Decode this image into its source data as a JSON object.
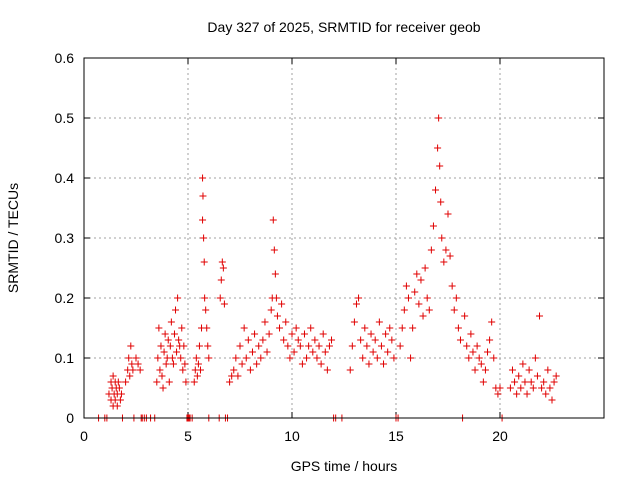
{
  "chart_data": {
    "type": "scatter",
    "title": "Day 327 of 2025, SRMTID for receiver geob",
    "xlabel": "GPS time / hours",
    "ylabel": "SRMTID / TECUs",
    "xlim": [
      0,
      25
    ],
    "ylim": [
      0,
      0.6
    ],
    "xticks": [
      0,
      5,
      10,
      15,
      20
    ],
    "xtick_labels": [
      "0",
      "5",
      "10",
      "15",
      "20"
    ],
    "yticks": [
      0,
      0.1,
      0.2,
      0.3,
      0.4,
      0.5,
      0.6
    ],
    "ytick_labels": [
      "0",
      "0.1",
      "0.2",
      "0.3",
      "0.4",
      "0.5",
      "0.6"
    ],
    "grid": true,
    "marker": "+",
    "series": [
      {
        "name": "SRMTID",
        "color": "#e00000",
        "x": [
          0.7,
          1.0,
          1.1,
          1.2,
          1.3,
          1.3,
          1.35,
          1.4,
          1.4,
          1.45,
          1.5,
          1.5,
          1.55,
          1.6,
          1.6,
          1.65,
          1.7,
          1.75,
          1.8,
          1.85,
          2.0,
          2.1,
          2.15,
          2.2,
          2.25,
          2.3,
          2.35,
          2.4,
          2.5,
          2.6,
          2.7,
          2.75,
          2.8,
          2.9,
          3.0,
          3.2,
          3.4,
          3.5,
          3.55,
          3.6,
          3.65,
          3.7,
          3.75,
          3.8,
          3.85,
          3.9,
          3.95,
          4.0,
          4.05,
          4.1,
          4.15,
          4.2,
          4.25,
          4.3,
          4.35,
          4.4,
          4.45,
          4.5,
          4.55,
          4.6,
          4.65,
          4.7,
          4.75,
          4.8,
          4.85,
          4.9,
          4.95,
          5.0,
          5.05,
          5.1,
          5.2,
          5.3,
          5.35,
          5.4,
          5.45,
          5.5,
          5.55,
          5.6,
          5.65,
          5.7,
          5.7,
          5.72,
          5.75,
          5.78,
          5.8,
          5.85,
          5.9,
          5.95,
          6.0,
          6.0,
          6.5,
          6.55,
          6.6,
          6.65,
          6.7,
          6.75,
          6.8,
          6.9,
          7.0,
          7.1,
          7.2,
          7.3,
          7.4,
          7.5,
          7.6,
          7.7,
          7.8,
          7.9,
          8.0,
          8.1,
          8.2,
          8.3,
          8.4,
          8.5,
          8.6,
          8.7,
          8.8,
          8.9,
          9.0,
          9.05,
          9.1,
          9.15,
          9.2,
          9.25,
          9.3,
          9.4,
          9.5,
          9.6,
          9.7,
          9.8,
          9.9,
          10.0,
          10.1,
          10.2,
          10.3,
          10.4,
          10.5,
          10.6,
          10.7,
          10.8,
          10.9,
          11.0,
          11.1,
          11.2,
          11.3,
          11.4,
          11.5,
          11.6,
          11.7,
          11.8,
          11.9,
          12.0,
          12.1,
          12.4,
          12.8,
          12.9,
          13.0,
          13.1,
          13.2,
          13.3,
          13.4,
          13.5,
          13.6,
          13.7,
          13.8,
          13.9,
          14.0,
          14.1,
          14.2,
          14.3,
          14.4,
          14.5,
          14.6,
          14.7,
          14.8,
          14.9,
          15.0,
          15.1,
          15.2,
          15.3,
          15.4,
          15.5,
          15.6,
          15.7,
          15.8,
          15.9,
          16.0,
          16.1,
          16.2,
          16.3,
          16.4,
          16.5,
          16.6,
          16.7,
          16.8,
          16.9,
          17.0,
          17.05,
          17.1,
          17.15,
          17.2,
          17.3,
          17.4,
          17.5,
          17.6,
          17.7,
          17.8,
          17.9,
          18.0,
          18.1,
          18.2,
          18.3,
          18.4,
          18.5,
          18.6,
          18.7,
          18.8,
          18.9,
          19.0,
          19.1,
          19.2,
          19.3,
          19.4,
          19.5,
          19.6,
          19.7,
          19.8,
          19.9,
          20.0,
          20.1,
          20.5,
          20.6,
          20.7,
          20.8,
          20.9,
          21.0,
          21.1,
          21.2,
          21.3,
          21.4,
          21.5,
          21.6,
          21.7,
          21.8,
          21.9,
          22.0,
          22.1,
          22.2,
          22.3,
          22.4,
          22.5,
          22.6,
          22.7
        ],
        "y": [
          0.0,
          0.0,
          0.0,
          0.04,
          0.06,
          0.03,
          0.05,
          0.07,
          0.02,
          0.04,
          0.06,
          0.03,
          0.05,
          0.04,
          0.02,
          0.06,
          0.05,
          0.03,
          0.04,
          0.0,
          0.06,
          0.08,
          0.1,
          0.07,
          0.12,
          0.09,
          0.08,
          0.0,
          0.1,
          0.09,
          0.08,
          0.0,
          0.0,
          0.0,
          0.0,
          0.0,
          0.0,
          0.06,
          0.1,
          0.15,
          0.08,
          0.12,
          0.07,
          0.05,
          0.11,
          0.14,
          0.09,
          0.1,
          0.13,
          0.06,
          0.12,
          0.16,
          0.1,
          0.09,
          0.14,
          0.18,
          0.11,
          0.2,
          0.13,
          0.12,
          0.1,
          0.15,
          0.08,
          0.12,
          0.09,
          0.06,
          0.0,
          0.0,
          0.0,
          0.0,
          0.0,
          0.06,
          0.08,
          0.1,
          0.07,
          0.09,
          0.12,
          0.08,
          0.15,
          0.4,
          0.33,
          0.37,
          0.3,
          0.26,
          0.2,
          0.18,
          0.15,
          0.12,
          0.1,
          0.0,
          0.0,
          0.2,
          0.23,
          0.26,
          0.25,
          0.19,
          0.0,
          0.0,
          0.06,
          0.07,
          0.08,
          0.1,
          0.07,
          0.12,
          0.09,
          0.15,
          0.1,
          0.13,
          0.08,
          0.11,
          0.14,
          0.09,
          0.12,
          0.1,
          0.13,
          0.16,
          0.11,
          0.14,
          0.18,
          0.2,
          0.33,
          0.28,
          0.24,
          0.2,
          0.17,
          0.15,
          0.19,
          0.13,
          0.16,
          0.12,
          0.1,
          0.14,
          0.11,
          0.15,
          0.13,
          0.12,
          0.09,
          0.14,
          0.1,
          0.12,
          0.15,
          0.11,
          0.13,
          0.1,
          0.12,
          0.09,
          0.14,
          0.11,
          0.08,
          0.12,
          0.13,
          0.0,
          0.0,
          0.0,
          0.08,
          0.12,
          0.16,
          0.19,
          0.2,
          0.13,
          0.1,
          0.15,
          0.12,
          0.09,
          0.14,
          0.11,
          0.13,
          0.1,
          0.16,
          0.12,
          0.09,
          0.14,
          0.11,
          0.15,
          0.13,
          0.1,
          0.0,
          0.0,
          0.12,
          0.15,
          0.18,
          0.22,
          0.2,
          0.1,
          0.15,
          0.21,
          0.24,
          0.19,
          0.23,
          0.17,
          0.25,
          0.2,
          0.18,
          0.28,
          0.32,
          0.38,
          0.45,
          0.5,
          0.42,
          0.36,
          0.3,
          0.26,
          0.28,
          0.34,
          0.27,
          0.22,
          0.18,
          0.2,
          0.15,
          0.13,
          0.0,
          0.17,
          0.12,
          0.1,
          0.14,
          0.11,
          0.08,
          0.12,
          0.1,
          0.09,
          0.06,
          0.08,
          0.11,
          0.13,
          0.16,
          0.1,
          0.05,
          0.04,
          0.05,
          0.0,
          0.05,
          0.08,
          0.06,
          0.04,
          0.07,
          0.05,
          0.09,
          0.06,
          0.04,
          0.08,
          0.06,
          0.05,
          0.1,
          0.07,
          0.17,
          0.05,
          0.06,
          0.04,
          0.08,
          0.05,
          0.03,
          0.06,
          0.07
        ]
      }
    ]
  }
}
